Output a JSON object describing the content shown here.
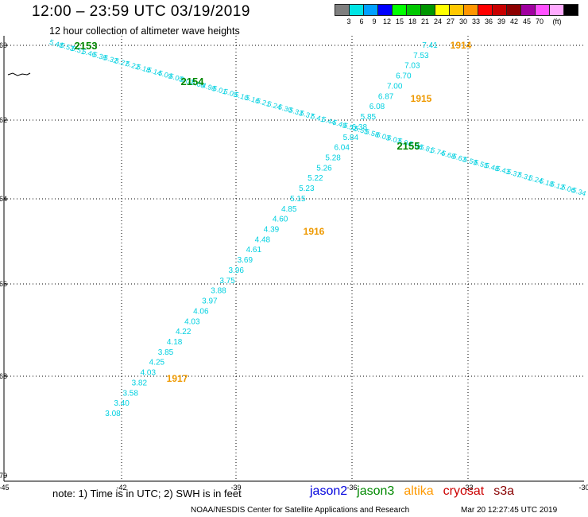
{
  "title": "12:00 – 23:59 UTC 03/19/2019",
  "subtitle": "12 hour collection of altimeter wave heights",
  "colorbar": {
    "labels": [
      "3",
      "6",
      "9",
      "12",
      "15",
      "18",
      "21",
      "24",
      "27",
      "30",
      "33",
      "36",
      "39",
      "42",
      "45",
      "70",
      "(ft)"
    ],
    "colors": [
      "#7f7f7f",
      "#00e5e5",
      "#00a0ff",
      "#0000ff",
      "#00ff00",
      "#00c800",
      "#009600",
      "#ffff00",
      "#ffc800",
      "#ff9600",
      "#ff0000",
      "#c80000",
      "#8c0000",
      "#a000a0",
      "#ff50ff",
      "#ffaaff",
      "#000000"
    ]
  },
  "axes": {
    "lat_ticks": [
      "-60",
      "-62",
      "-64",
      "-66",
      "-68",
      "-70"
    ],
    "lon_ticks": [
      "-45",
      "-42",
      "-39",
      "-36",
      "-33",
      "-30"
    ]
  },
  "tracks": {
    "ascending": {
      "values": [
        "7.41",
        "7.53",
        "7.03",
        "6.70",
        "7.00",
        "6.87",
        "6.08",
        "5.85",
        "6.38",
        "5.84",
        "6.04",
        "5.28",
        "5.26",
        "5.22",
        "5.23",
        "5.15",
        "4.85",
        "4.60",
        "4.39",
        "4.48",
        "4.61",
        "3.69",
        "3.96",
        "3.75",
        "3.88",
        "3.97",
        "4.06",
        "4.03",
        "4.22",
        "4.18",
        "3.85",
        "4.25",
        "4.03",
        "3.82",
        "3.58",
        "3.40",
        "3.08"
      ],
      "color": "#00d0e0"
    },
    "descending": {
      "values": [
        "5.48",
        "5.53",
        "5.51",
        "5.46",
        "5.38",
        "5.32",
        "5.27",
        "5.22",
        "5.18",
        "5.14",
        "5.09",
        "5.05",
        "5.02",
        "5.00",
        "4.98",
        "5.01",
        "5.05",
        "5.10",
        "5.16",
        "5.21",
        "5.24",
        "5.30",
        "5.33",
        "5.37",
        "5.41",
        "5.44",
        "5.49",
        "5.52",
        "5.55",
        "5.58",
        "6.03",
        "6.03",
        "5.94",
        "5.86",
        "5.81",
        "5.74",
        "5.68",
        "5.63",
        "5.59",
        "5.55",
        "5.48",
        "5.43",
        "5.37",
        "5.31",
        "5.24",
        "5.18",
        "5.12",
        "5.06",
        "5.34"
      ],
      "color": "#00d0e0"
    }
  },
  "time_labels": {
    "orange": [
      "1914",
      "1915",
      "1916",
      "1917"
    ],
    "green": [
      "2153",
      "2154",
      "2155"
    ]
  },
  "colors": {
    "orange": "#ee9900",
    "green": "#008800"
  },
  "footer": {
    "note": "note:  1) Time is in UTC;  2) SWH is in feet",
    "credit": "NOAA/NESDIS Center for Satellite Applications and Research",
    "generated": "Mar 20 12:27:45 UTC 2019"
  },
  "legend": [
    {
      "name": "jason2",
      "color": "#0000dd"
    },
    {
      "name": "jason3",
      "color": "#008800"
    },
    {
      "name": "altika",
      "color": "#ff9900"
    },
    {
      "name": "cryosat",
      "color": "#cc0000"
    },
    {
      "name": "s3a",
      "color": "#880000"
    }
  ]
}
